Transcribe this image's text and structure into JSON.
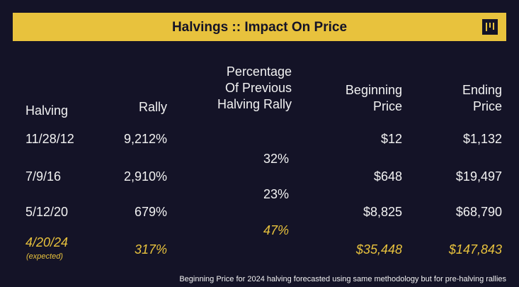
{
  "title": "Halvings :: Impact On Price",
  "logo_icon": "brand-logo-icon",
  "colors": {
    "background": "#141327",
    "accent": "#e8c23d",
    "text": "#f2f2f2"
  },
  "headers": {
    "halving": "Halving",
    "rally": "Rally",
    "pct_line1": "Percentage",
    "pct_line2": "Of Previous",
    "pct_line3": "Halving Rally",
    "begin_line1": "Beginning",
    "begin_line2": "Price",
    "end_line1": "Ending",
    "end_line2": "Price"
  },
  "rows": [
    {
      "halving": "11/28/12",
      "rally": "9,212%",
      "beginning": "$12",
      "ending": "$1,132"
    },
    {
      "halving": "7/9/16",
      "rally": "2,910%",
      "beginning": "$648",
      "ending": "$19,497"
    },
    {
      "halving": "5/12/20",
      "rally": "679%",
      "beginning": "$8,825",
      "ending": "$68,790"
    },
    {
      "halving": "4/20/24",
      "note": "(expected)",
      "rally": "317%",
      "beginning": "$35,448",
      "ending": "$147,843"
    }
  ],
  "percentages": [
    "32%",
    "23%",
    "47%"
  ],
  "footnote": "Beginning Price for 2024 halving forecasted using same methodology but for pre-halving rallies"
}
